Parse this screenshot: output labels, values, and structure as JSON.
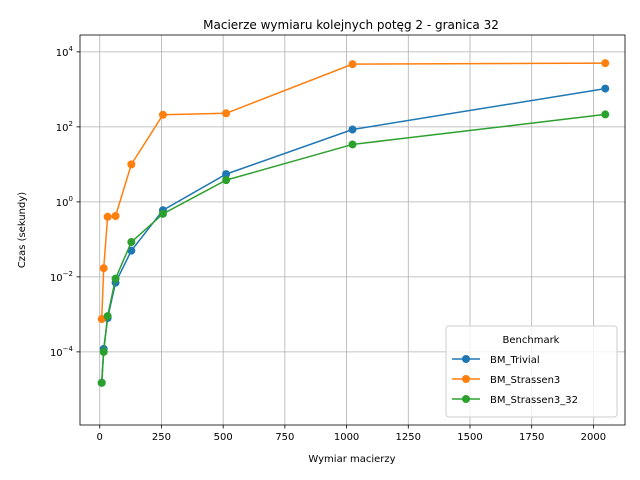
{
  "chart_data": {
    "type": "line",
    "title": "Macierze wymiaru kolejnych potęg 2 - granica 32",
    "xlabel": "Wymiar macierzy",
    "ylabel": "Czas (sekundy)",
    "xlim": [
      -80,
      2128
    ],
    "ylim_log10": [
      -5.95,
      4.45
    ],
    "yscale": "log",
    "grid": true,
    "x_ticks": [
      {
        "value": 0,
        "label": "0"
      },
      {
        "value": 250,
        "label": "250"
      },
      {
        "value": 500,
        "label": "500"
      },
      {
        "value": 750,
        "label": "750"
      },
      {
        "value": 1000,
        "label": "1000"
      },
      {
        "value": 1250,
        "label": "1250"
      },
      {
        "value": 1500,
        "label": "1500"
      },
      {
        "value": 1750,
        "label": "1750"
      },
      {
        "value": 2000,
        "label": "2000"
      }
    ],
    "y_ticks": [
      {
        "exp": -4,
        "base": "10",
        "sup": "−4"
      },
      {
        "exp": -2,
        "base": "10",
        "sup": "−2"
      },
      {
        "exp": 0,
        "base": "10",
        "sup": "0"
      },
      {
        "exp": 2,
        "base": "10",
        "sup": "2"
      },
      {
        "exp": 4,
        "base": "10",
        "sup": "4"
      }
    ],
    "legend": {
      "title": "Benchmark",
      "position": "lower-right"
    },
    "x": [
      8,
      16,
      32,
      64,
      128,
      256,
      512,
      1024,
      2048
    ],
    "series": [
      {
        "name": "BM_Trivial",
        "color": "#1f77b4",
        "values": [
          1.5e-05,
          0.00012,
          0.0008,
          0.007,
          0.05,
          0.6,
          5.5,
          85,
          1050
        ]
      },
      {
        "name": "BM_Strassen3",
        "color": "#ff7f0e",
        "values": [
          0.00075,
          0.017,
          0.4,
          0.42,
          10,
          210,
          230,
          4700,
          5000
        ]
      },
      {
        "name": "BM_Strassen3_32",
        "color": "#2ca02c",
        "values": [
          1.5e-05,
          0.0001,
          0.0009,
          0.009,
          0.085,
          0.48,
          3.8,
          34,
          215
        ]
      }
    ]
  }
}
